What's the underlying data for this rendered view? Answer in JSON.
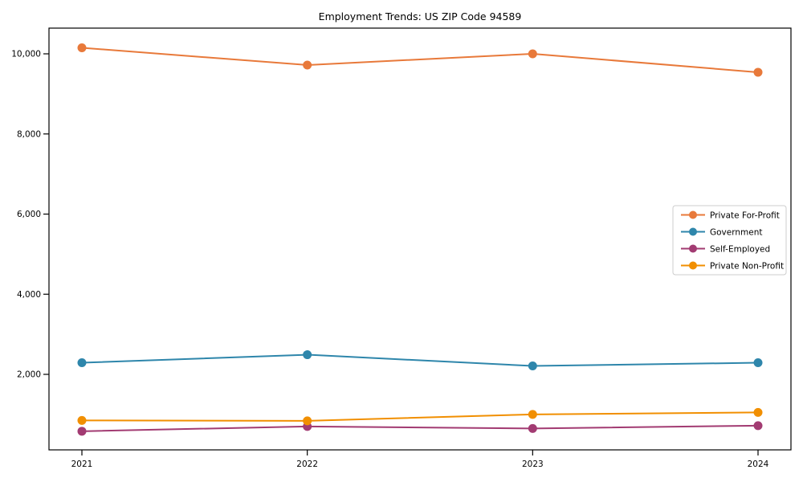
{
  "title": "Employment Trends: US ZIP Code 94589",
  "chart_data": {
    "type": "line",
    "title": "Employment Trends: US ZIP Code 94589",
    "xlabel": "",
    "ylabel": "",
    "grid": false,
    "legend_position": "center right",
    "x": [
      2021,
      2022,
      2023,
      2024
    ],
    "x_tick_labels": [
      "2021",
      "2022",
      "2023",
      "2024"
    ],
    "y_ticks": [
      2000,
      4000,
      6000,
      8000,
      10000
    ],
    "y_tick_labels": [
      "2,000",
      "4,000",
      "6,000",
      "8,000",
      "10,000"
    ],
    "ylim": [
      115,
      10640
    ],
    "series": [
      {
        "name": "Private For-Profit",
        "color": "#E8793A",
        "values": [
          10150,
          9720,
          10000,
          9540
        ]
      },
      {
        "name": "Government",
        "color": "#2E86AB",
        "values": [
          2290,
          2490,
          2210,
          2290
        ]
      },
      {
        "name": "Self-Employed",
        "color": "#A23B72",
        "values": [
          580,
          700,
          650,
          720
        ]
      },
      {
        "name": "Private Non-Profit",
        "color": "#F18F01",
        "values": [
          850,
          840,
          1000,
          1050
        ]
      }
    ]
  },
  "colors": {
    "axis": "#000000",
    "legend_border": "#cccccc",
    "background": "#ffffff"
  }
}
